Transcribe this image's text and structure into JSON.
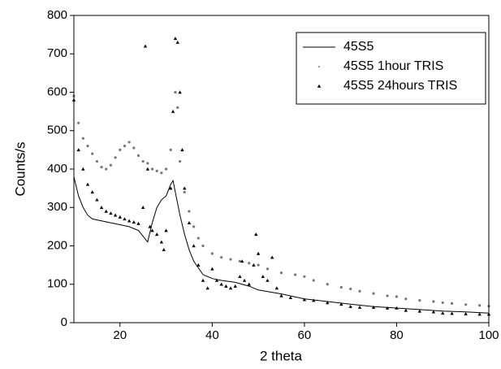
{
  "chart_data": {
    "type": "scatter",
    "xlabel": "2 theta",
    "ylabel": "Counts/s",
    "xlim": [
      10,
      100
    ],
    "ylim": [
      0,
      800
    ],
    "xticks": [
      20,
      40,
      60,
      80,
      100
    ],
    "yticks": [
      0,
      100,
      200,
      300,
      400,
      500,
      600,
      700,
      800
    ],
    "grid": false,
    "legend": "upper right",
    "series": [
      {
        "name": "45S5",
        "color": "#000000",
        "marker": "line",
        "x": [
          10,
          11,
          12,
          13,
          14,
          16,
          18,
          20,
          22,
          24,
          25,
          26,
          27,
          28,
          29,
          30,
          31,
          31.5,
          32,
          33,
          34,
          35,
          36,
          38,
          40,
          42,
          45,
          48,
          50,
          55,
          60,
          65,
          70,
          75,
          80,
          85,
          90,
          95,
          100
        ],
        "values": [
          380,
          330,
          300,
          280,
          270,
          265,
          260,
          255,
          250,
          240,
          225,
          210,
          260,
          300,
          320,
          330,
          360,
          370,
          340,
          280,
          230,
          190,
          160,
          125,
          115,
          110,
          105,
          95,
          85,
          75,
          62,
          55,
          48,
          42,
          38,
          34,
          30,
          28,
          25
        ]
      },
      {
        "name": "45S5 1hour TRIS",
        "color": "#777777",
        "marker": "dot",
        "x": [
          10,
          11,
          12,
          13,
          14,
          15,
          16,
          17,
          18,
          19,
          20,
          21,
          22,
          23,
          24,
          25,
          26,
          27,
          28,
          29,
          30,
          31,
          32,
          32.5,
          33,
          34,
          35,
          36,
          37,
          38,
          40,
          42,
          44,
          46,
          48,
          50,
          52,
          55,
          58,
          60,
          62,
          65,
          68,
          70,
          72,
          75,
          78,
          80,
          82,
          85,
          88,
          90,
          92,
          95,
          98,
          100
        ],
        "values": [
          590,
          520,
          480,
          460,
          440,
          420,
          405,
          400,
          410,
          430,
          450,
          460,
          470,
          455,
          435,
          420,
          415,
          400,
          395,
          390,
          400,
          450,
          600,
          560,
          420,
          340,
          290,
          250,
          220,
          200,
          180,
          170,
          165,
          160,
          155,
          150,
          140,
          130,
          125,
          120,
          110,
          100,
          92,
          88,
          82,
          76,
          70,
          68,
          62,
          58,
          55,
          52,
          50,
          47,
          45,
          43
        ]
      },
      {
        "name": "45S5 24hours TRIS",
        "color": "#000000",
        "marker": "triangle",
        "x": [
          10,
          11,
          12,
          13,
          14,
          15,
          16,
          17,
          18,
          19,
          20,
          21,
          22,
          23,
          24,
          25,
          25.5,
          26,
          26.5,
          27,
          28,
          29,
          29.5,
          30,
          31,
          31.5,
          32,
          32.5,
          33,
          33.5,
          34,
          35,
          36,
          37,
          38,
          39,
          40,
          41,
          42,
          43,
          44,
          45,
          46,
          46.5,
          47,
          48,
          49,
          49.5,
          50,
          51,
          52,
          53,
          54,
          55,
          57,
          60,
          62,
          65,
          68,
          70,
          72,
          75,
          78,
          80,
          82,
          85,
          88,
          90,
          92,
          95,
          98,
          100
        ],
        "values": [
          580,
          450,
          400,
          360,
          340,
          320,
          300,
          290,
          285,
          280,
          275,
          270,
          265,
          262,
          258,
          300,
          720,
          400,
          250,
          240,
          230,
          210,
          190,
          240,
          350,
          550,
          740,
          730,
          600,
          450,
          350,
          260,
          200,
          150,
          110,
          90,
          140,
          110,
          100,
          95,
          90,
          95,
          120,
          160,
          110,
          100,
          150,
          230,
          180,
          120,
          110,
          170,
          90,
          70,
          65,
          60,
          58,
          52,
          48,
          42,
          40,
          40,
          38,
          38,
          32,
          30,
          28,
          25,
          24,
          23,
          22,
          22
        ]
      }
    ]
  }
}
